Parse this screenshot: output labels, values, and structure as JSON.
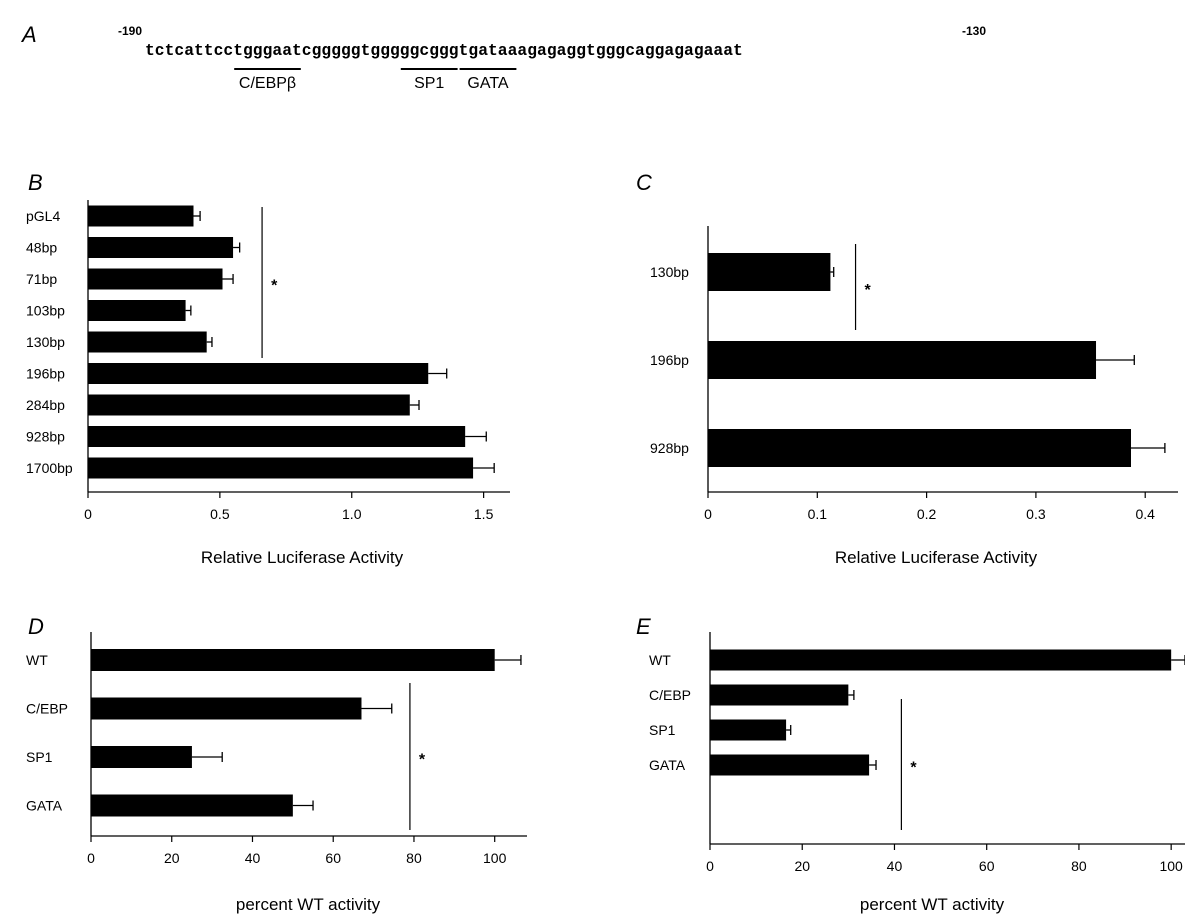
{
  "panel_a": {
    "letter": "A",
    "start_label": "-190",
    "end_label": "-130",
    "sequence": "tctcattcctgggaatcgggggtgggggcgggtgataaagagaggtgggcaggagagaaat",
    "sites": [
      {
        "name": "C/EBPβ",
        "start": 9,
        "end": 16
      },
      {
        "name": "SP1",
        "start": 26,
        "end": 32
      },
      {
        "name": "GATA",
        "start": 32,
        "end": 38
      }
    ]
  },
  "chart_data": [
    {
      "panel": "B",
      "type": "bar",
      "orientation": "horizontal",
      "categories": [
        "pGL4",
        "48bp",
        "71bp",
        "103bp",
        "130bp",
        "196bp",
        "284bp",
        "928bp",
        "1700bp"
      ],
      "values": [
        0.4,
        0.55,
        0.51,
        0.37,
        0.45,
        1.29,
        1.22,
        1.43,
        1.46
      ],
      "errors": [
        0.025,
        0.025,
        0.04,
        0.02,
        0.02,
        0.07,
        0.035,
        0.08,
        0.08
      ],
      "xlabel": "Relative Luciferase Activity",
      "ticks": [
        0,
        0.5,
        1.0,
        1.5
      ],
      "tick_labels": [
        "0",
        "0.5",
        "1.0",
        "1.5"
      ],
      "xlim": [
        0,
        1.6
      ],
      "significance": {
        "label": "*",
        "x": 0.66,
        "from": 0,
        "to": 4
      },
      "bar_color": "#000000"
    },
    {
      "panel": "C",
      "type": "bar",
      "orientation": "horizontal",
      "categories": [
        "130bp",
        "196bp",
        "928bp"
      ],
      "values": [
        0.112,
        0.355,
        0.387
      ],
      "errors": [
        0.003,
        0.035,
        0.031
      ],
      "xlabel": "Relative Luciferase Activity",
      "ticks": [
        0,
        0.1,
        0.2,
        0.3,
        0.4
      ],
      "tick_labels": [
        "0",
        "0.1",
        "0.2",
        "0.3",
        "0.4"
      ],
      "xlim": [
        0,
        0.43
      ],
      "significance": {
        "label": "*",
        "x": 0.135,
        "from": 0,
        "to": 0.4
      },
      "bar_color": "#000000"
    },
    {
      "panel": "D",
      "type": "bar",
      "orientation": "horizontal",
      "categories": [
        "WT",
        "C/EBP",
        "SP1",
        "GATA"
      ],
      "values": [
        100,
        67,
        25,
        50
      ],
      "errors": [
        6.5,
        7.5,
        7.5,
        5
      ],
      "xlabel": "percent WT activity",
      "ticks": [
        0,
        20,
        40,
        60,
        80,
        100
      ],
      "tick_labels": [
        "0",
        "20",
        "40",
        "60",
        "80",
        "100"
      ],
      "xlim": [
        0,
        108
      ],
      "significance": {
        "label": "*",
        "x": 79,
        "from": 1,
        "to": 3
      },
      "bar_color": "#000000"
    },
    {
      "panel": "E",
      "type": "bar",
      "orientation": "horizontal",
      "categories": [
        "WT",
        "C/EBP",
        "SP1",
        "GATA"
      ],
      "values": [
        100,
        30,
        16.5,
        34.5
      ],
      "errors": [
        3,
        1.2,
        1,
        1.5
      ],
      "xlabel": "percent WT activity",
      "ticks": [
        0,
        20,
        40,
        60,
        80,
        100
      ],
      "tick_labels": [
        "0",
        "20",
        "40",
        "60",
        "80",
        "100"
      ],
      "xlim": [
        0,
        103
      ],
      "significance": {
        "label": "*",
        "x": 41.5,
        "from": 1,
        "to": 3
      },
      "bar_color": "#000000"
    }
  ]
}
